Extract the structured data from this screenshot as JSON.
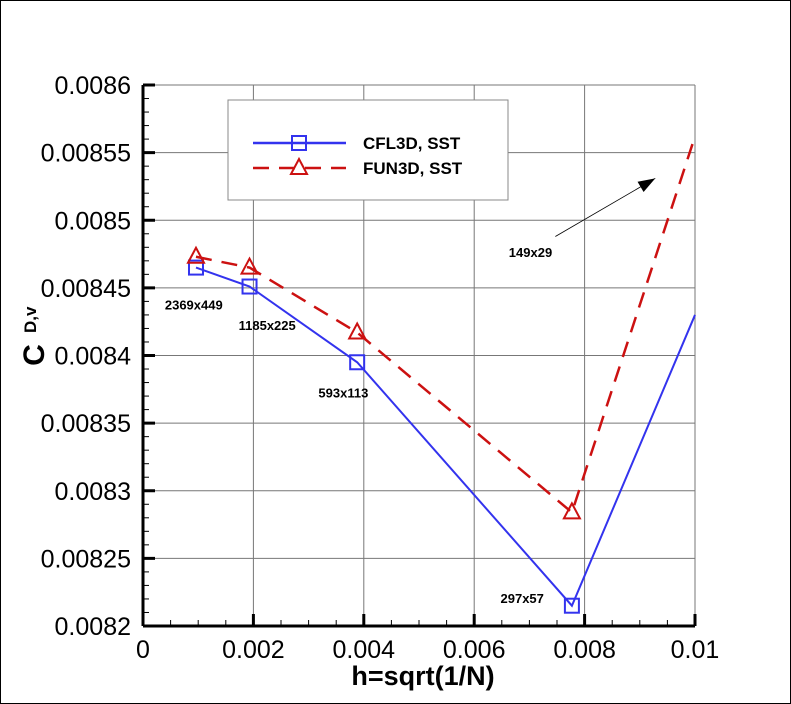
{
  "chart_data": {
    "type": "line",
    "xlabel": "h=sqrt(1/N)",
    "ylabel_main": "C",
    "ylabel_sub": "D,v",
    "xlim": [
      0,
      0.01
    ],
    "ylim": [
      0.0082,
      0.0086
    ],
    "xticks": [
      "0",
      "0.002",
      "0.004",
      "0.006",
      "0.008",
      "0.01"
    ],
    "yticks": [
      "0.0082",
      "0.00825",
      "0.0083",
      "0.00835",
      "0.0084",
      "0.00845",
      "0.0085",
      "0.00855",
      "0.0086"
    ],
    "grid": true,
    "legend_position": "top-center",
    "series": [
      {
        "name": "CFL3D, SST",
        "color": "#3333ee",
        "style": "solid",
        "marker": "square",
        "x": [
          0.00096,
          0.00193,
          0.00388,
          0.00777,
          0.01
        ],
        "y": [
          0.008465,
          0.008451,
          0.008395,
          0.008215,
          0.00843
        ],
        "markers": [
          true,
          true,
          true,
          true,
          false
        ]
      },
      {
        "name": "FUN3D, SST",
        "color": "#cc1111",
        "style": "dashed",
        "marker": "triangle",
        "x": [
          0.00096,
          0.00193,
          0.00388,
          0.00777,
          0.01
        ],
        "y": [
          0.008473,
          0.008465,
          0.008417,
          0.008284,
          0.008562
        ],
        "markers": [
          true,
          true,
          true,
          true,
          false
        ]
      }
    ],
    "annotations": [
      {
        "text": "2369x449",
        "x": 0.00092,
        "y": 0.008434
      },
      {
        "text": "1185x225",
        "x": 0.00225,
        "y": 0.008419
      },
      {
        "text": "593x113",
        "x": 0.00363,
        "y": 0.008369
      },
      {
        "text": "297x57",
        "x": 0.00687,
        "y": 0.008217
      },
      {
        "text": "149x29",
        "x": 0.00702,
        "y": 0.008473
      }
    ],
    "arrow": {
      "from": [
        0.00747,
        0.008488
      ],
      "to": [
        0.00928,
        0.008531
      ]
    }
  }
}
